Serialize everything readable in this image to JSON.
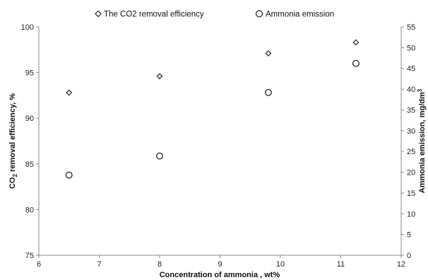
{
  "chart_data": {
    "type": "scatter",
    "xlabel": "Concentration of ammonia , wt%",
    "ylabel_left": {
      "pre": "CO",
      "sub": "2",
      "post": " removal efficiency, %"
    },
    "ylabel_right": {
      "pre": "Ammonia emission, mg/dm",
      "sup": "3"
    },
    "xlim": [
      6,
      12
    ],
    "xticks": [
      6,
      7,
      8,
      9,
      10,
      11,
      12
    ],
    "ylim_left": [
      75,
      100
    ],
    "yticks_left": [
      75,
      80,
      85,
      90,
      95,
      100
    ],
    "ylim_right": [
      0,
      55
    ],
    "yticks_right": [
      0,
      5,
      10,
      15,
      20,
      25,
      30,
      35,
      40,
      45,
      50,
      55
    ],
    "grid": false,
    "legend_position": "top",
    "series": [
      {
        "name": "The CO2 removal efficiency",
        "marker": "diamond",
        "axis": "left",
        "points": [
          {
            "x": 6.5,
            "y": 92.8
          },
          {
            "x": 8.0,
            "y": 94.6
          },
          {
            "x": 9.8,
            "y": 97.1
          },
          {
            "x": 11.25,
            "y": 98.3
          }
        ]
      },
      {
        "name": "Ammonia emission",
        "marker": "circle",
        "axis": "right",
        "points": [
          {
            "x": 6.5,
            "y": 19.3
          },
          {
            "x": 8.0,
            "y": 23.9
          },
          {
            "x": 9.8,
            "y": 39.2
          },
          {
            "x": 11.25,
            "y": 46.2
          }
        ]
      }
    ]
  }
}
